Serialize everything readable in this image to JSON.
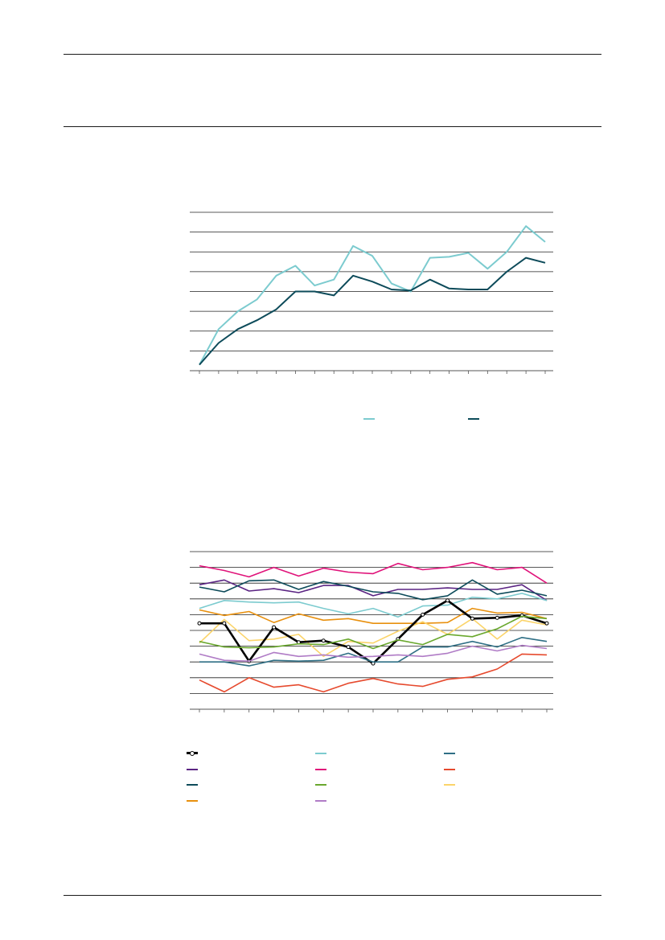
{
  "page": {
    "header_text": "",
    "footer_text": ""
  },
  "chart_data": [
    {
      "type": "line",
      "title": "",
      "xlabel": "",
      "ylabel": "",
      "grid": true,
      "legend_position": "bottom",
      "ylim": [
        0,
        8
      ],
      "categories": [
        "",
        "",
        "",
        "",
        "",
        "",
        "",
        "",
        "",
        "",
        "",
        "",
        "",
        "",
        "",
        "",
        "",
        "",
        ""
      ],
      "series": [
        {
          "color": "#7ccbcf",
          "values": [
            0.3,
            2.1,
            3.0,
            3.6,
            4.8,
            5.3,
            4.3,
            4.6,
            6.3,
            5.8,
            4.4,
            4.0,
            5.7,
            5.75,
            5.95,
            5.15,
            6.0,
            7.3,
            6.5
          ]
        },
        {
          "color": "#0d4b5a",
          "values": [
            0.3,
            1.4,
            2.1,
            2.55,
            3.1,
            4.0,
            4.0,
            3.8,
            4.8,
            4.5,
            4.1,
            4.05,
            4.6,
            4.15,
            4.1,
            4.1,
            5.0,
            5.7,
            5.45
          ]
        }
      ],
      "legend": [
        {
          "label": "",
          "color": "#7ccbcf"
        },
        {
          "label": "",
          "color": "#0d4b5a"
        }
      ]
    },
    {
      "type": "line",
      "title": "",
      "xlabel": "",
      "ylabel": "",
      "grid": true,
      "legend_position": "bottom",
      "ylim": [
        0,
        10
      ],
      "categories": [
        "",
        "",
        "",
        "",
        "",
        "",
        "",
        "",
        "",
        "",
        "",
        "",
        "",
        "",
        ""
      ],
      "series": [
        {
          "color": "#e0137a",
          "values": [
            9.1,
            8.8,
            8.4,
            9.0,
            8.45,
            8.95,
            8.7,
            8.6,
            9.25,
            8.85,
            9.0,
            9.3,
            8.85,
            9.0,
            8.0
          ]
        },
        {
          "color": "#5b2483",
          "values": [
            7.9,
            8.2,
            7.5,
            7.65,
            7.4,
            7.85,
            7.85,
            7.2,
            7.6,
            7.6,
            7.7,
            7.6,
            7.6,
            7.9,
            6.9
          ]
        },
        {
          "color": "#0d4b5a",
          "values": [
            7.75,
            7.45,
            8.15,
            8.2,
            7.6,
            8.1,
            7.8,
            7.45,
            7.35,
            6.95,
            7.2,
            8.2,
            7.3,
            7.55,
            7.2
          ]
        },
        {
          "color": "#7ccbcf",
          "values": [
            6.4,
            6.9,
            6.8,
            6.75,
            6.8,
            6.4,
            6.05,
            6.4,
            5.85,
            6.55,
            6.6,
            7.1,
            7.0,
            7.35,
            6.9
          ]
        },
        {
          "color": "#e8900e",
          "values": [
            6.3,
            5.95,
            6.2,
            5.5,
            6.05,
            5.65,
            5.75,
            5.45,
            5.45,
            5.45,
            5.5,
            6.4,
            6.1,
            6.15,
            5.75
          ]
        },
        {
          "color": "#fbd46a",
          "values": [
            4.2,
            5.7,
            4.35,
            4.45,
            4.75,
            3.35,
            4.3,
            4.2,
            4.95,
            5.55,
            4.75,
            5.75,
            4.45,
            5.65,
            5.35
          ]
        },
        {
          "color": "#000000",
          "marker": true,
          "values": [
            5.45,
            5.45,
            3.05,
            5.2,
            4.25,
            4.35,
            3.95,
            2.9,
            4.45,
            6.0,
            6.9,
            5.75,
            5.8,
            5.95,
            5.45
          ]
        },
        {
          "color": "#6aa82e",
          "values": [
            4.3,
            3.95,
            3.9,
            3.95,
            4.15,
            4.1,
            4.45,
            3.85,
            4.4,
            4.1,
            4.75,
            4.6,
            5.1,
            5.9,
            5.75
          ]
        },
        {
          "color": "#2f6f85",
          "values": [
            3.0,
            3.0,
            2.75,
            3.1,
            3.05,
            3.1,
            3.55,
            3.0,
            3.0,
            3.95,
            3.95,
            4.3,
            3.95,
            4.55,
            4.3
          ]
        },
        {
          "color": "#b07cc6",
          "values": [
            3.5,
            3.1,
            3.05,
            3.6,
            3.35,
            3.45,
            3.3,
            3.35,
            3.45,
            3.35,
            3.55,
            4.0,
            3.7,
            4.05,
            3.85
          ]
        },
        {
          "color": "#e64a2e",
          "values": [
            1.85,
            1.1,
            2.0,
            1.4,
            1.55,
            1.1,
            1.65,
            1.95,
            1.6,
            1.45,
            1.9,
            2.05,
            2.55,
            3.5,
            3.45
          ]
        }
      ],
      "legend": [
        {
          "label": "",
          "color": "#000000",
          "marker": true
        },
        {
          "label": "",
          "color": "#7ccbcf"
        },
        {
          "label": "",
          "color": "#2f6f85"
        },
        {
          "label": "",
          "color": "#5b2483"
        },
        {
          "label": "",
          "color": "#e0137a"
        },
        {
          "label": "",
          "color": "#e64a2e"
        },
        {
          "label": "",
          "color": "#0d4b5a"
        },
        {
          "label": "",
          "color": "#6aa82e"
        },
        {
          "label": "",
          "color": "#fbd46a"
        },
        {
          "label": "",
          "color": "#e8900e"
        },
        {
          "label": "",
          "color": "#b07cc6"
        }
      ]
    }
  ]
}
